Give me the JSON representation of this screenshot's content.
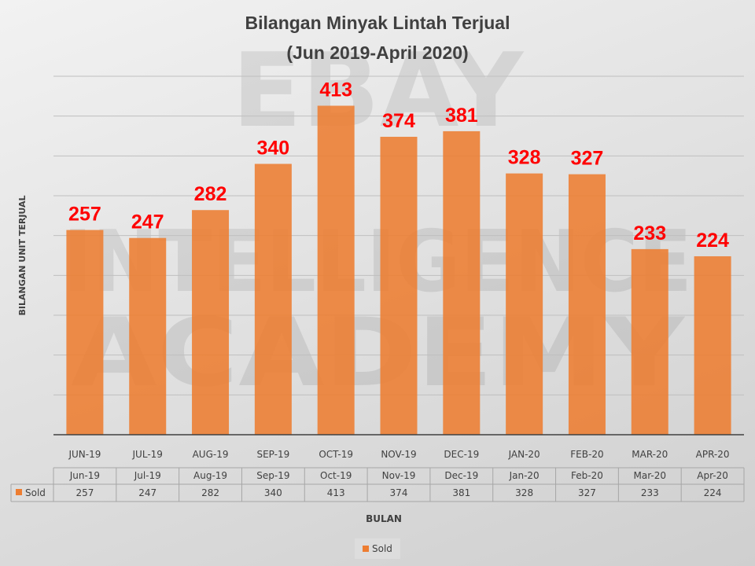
{
  "chart_data": {
    "type": "bar",
    "title": "Bilangan Minyak Lintah Terjual",
    "subtitle": "(Jun 2019-April 2020)",
    "xlabel": "BULAN",
    "ylabel": "BILANGAN UNIT TERJUAL",
    "categories": [
      "JUN-19",
      "JUL-19",
      "AUG-19",
      "SEP-19",
      "OCT-19",
      "NOV-19",
      "DEC-19",
      "JAN-20",
      "FEB-20",
      "MAR-20",
      "APR-20"
    ],
    "table_categories": [
      "Jun-19",
      "Jul-19",
      "Aug-19",
      "Sep-19",
      "Oct-19",
      "Nov-19",
      "Dec-19",
      "Jan-20",
      "Feb-20",
      "Mar-20",
      "Apr-20"
    ],
    "series": [
      {
        "name": "Sold",
        "values": [
          257,
          247,
          282,
          340,
          413,
          374,
          381,
          328,
          327,
          233,
          224
        ]
      }
    ],
    "ylim": [
      0,
      450
    ],
    "ytick_step": 50,
    "grid": true,
    "legend": "bottom",
    "data_table": true,
    "colors": {
      "bar": "#ED7D31",
      "data_label": "#FF0000",
      "text": "#404040"
    }
  },
  "watermark": {
    "lines": [
      "EBAY",
      "INTELLIGENCE",
      "ACADEMY"
    ]
  }
}
